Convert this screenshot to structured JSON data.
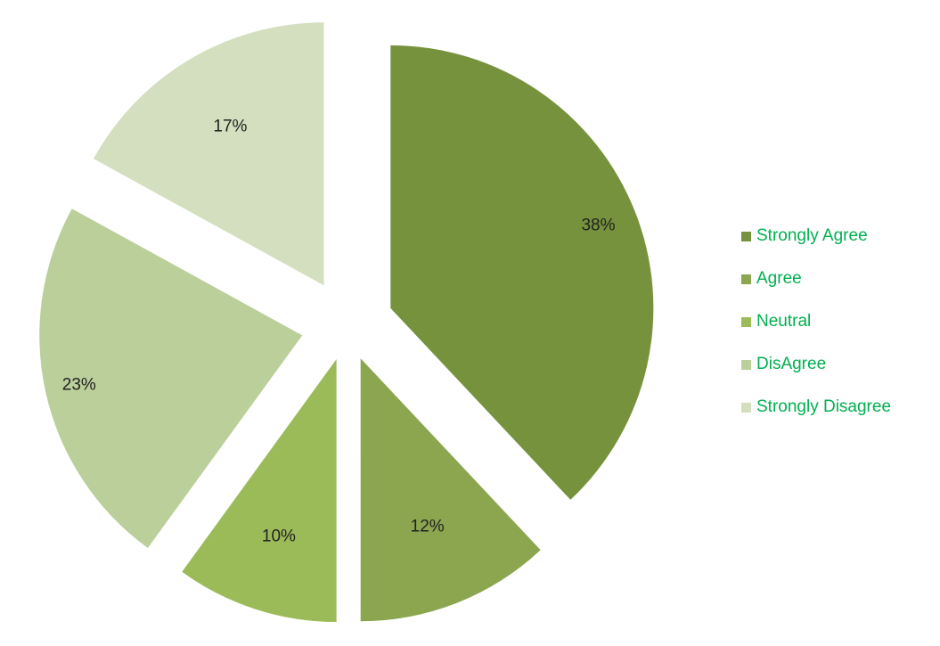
{
  "chart_data": {
    "type": "pie",
    "style": "exploded",
    "categories": [
      "Strongly Agree",
      "Agree",
      "Neutral",
      "DisAgree",
      "Strongly Disagree"
    ],
    "values": [
      38,
      12,
      10,
      23,
      17
    ],
    "value_labels": [
      "38%",
      "12%",
      "10%",
      "23%",
      "17%"
    ],
    "unit": "%",
    "colors": [
      "#76923c",
      "#8ba64f",
      "#9bbb59",
      "#bbcf9a",
      "#d3dfbf"
    ],
    "title": "",
    "legend_position": "right",
    "legend_text_color": "#00b050",
    "start": "12 o'clock, clockwise"
  }
}
